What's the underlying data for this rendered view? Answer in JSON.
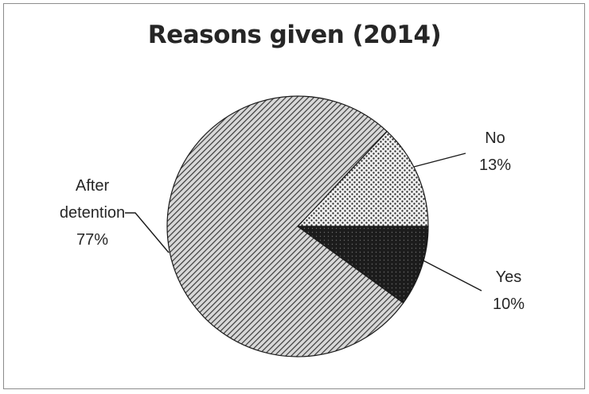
{
  "chart_data": {
    "type": "pie",
    "title": "Reasons given (2014)",
    "slices": [
      {
        "label": "No",
        "value": 13,
        "pct_label": "13%",
        "pattern": "dots"
      },
      {
        "label": "Yes",
        "value": 10,
        "pct_label": "10%",
        "pattern": "solid-dark"
      },
      {
        "label_lines": [
          "After",
          "detention"
        ],
        "label": "After detention",
        "value": 77,
        "pct_label": "77%",
        "pattern": "diagonal-hatch"
      }
    ],
    "legend": "none",
    "colors": {
      "hatch": "#3a3a3a",
      "dark": "#1c1c1c",
      "text": "#262626"
    }
  }
}
